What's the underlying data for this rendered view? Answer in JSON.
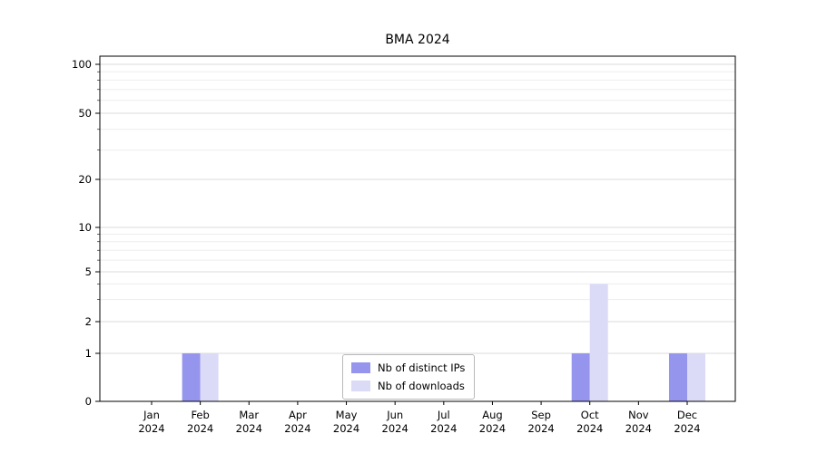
{
  "figure": {
    "background": "#ffffff"
  },
  "chart_data": {
    "type": "bar",
    "title": "BMA 2024",
    "categories": [
      "Jan 2024",
      "Feb 2024",
      "Mar 2024",
      "Apr 2024",
      "May 2024",
      "Jun 2024",
      "Jul 2024",
      "Aug 2024",
      "Sep 2024",
      "Oct 2024",
      "Nov 2024",
      "Dec 2024"
    ],
    "series": [
      {
        "name": "Nb of distinct IPs",
        "color": "#9595ee",
        "values": [
          0,
          1,
          0,
          0,
          0,
          0,
          0,
          0,
          0,
          1,
          0,
          1
        ]
      },
      {
        "name": "Nb of downloads",
        "color": "#dbdbf7",
        "values": [
          0,
          1,
          0,
          0,
          0,
          0,
          0,
          0,
          0,
          4,
          0,
          1
        ]
      }
    ],
    "yscale": "symlog",
    "yticks": [
      0,
      1,
      2,
      5,
      10,
      20,
      50,
      100
    ],
    "ylim": [
      0,
      115
    ],
    "xlabel": "",
    "ylabel": "",
    "grid": "horizontal-with-log-minors",
    "legend_position": "lower center"
  }
}
